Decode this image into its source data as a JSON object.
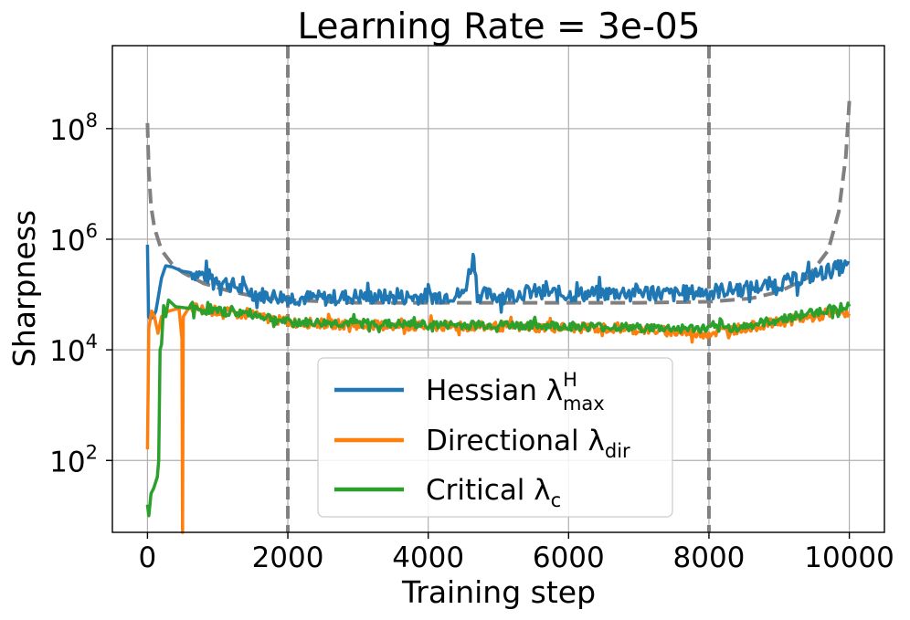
{
  "chart_data": {
    "type": "line",
    "title": "Learning Rate = 3e-05",
    "xlabel": "Training step",
    "ylabel": "Sharpness",
    "xlim": [
      -500,
      10500
    ],
    "ylim_log10": [
      0.7,
      9.5
    ],
    "y_scale": "log",
    "grid": true,
    "legend_position": "lower-center",
    "x_ticks": [
      {
        "value": 0,
        "label": "0"
      },
      {
        "value": 2000,
        "label": "2000"
      },
      {
        "value": 4000,
        "label": "4000"
      },
      {
        "value": 6000,
        "label": "6000"
      },
      {
        "value": 8000,
        "label": "8000"
      },
      {
        "value": 10000,
        "label": "10000"
      }
    ],
    "y_ticks": [
      {
        "exp": 2,
        "base": "10",
        "sup": "2"
      },
      {
        "exp": 4,
        "base": "10",
        "sup": "4"
      },
      {
        "exp": 6,
        "base": "10",
        "sup": "6"
      },
      {
        "exp": 8,
        "base": "10",
        "sup": "8"
      }
    ],
    "vertical_lines": [
      2000,
      8000
    ],
    "colors": {
      "hessian": "#1f77b4",
      "directional": "#ff7f0e",
      "critical": "#2ca02c",
      "reference": "#808080"
    },
    "series": [
      {
        "name": "Hessian",
        "legend_main": "Hessian λ",
        "legend_sup": "H",
        "legend_sub": "max",
        "color": "#1f77b4",
        "points_log10": [
          [
            0,
            5.9
          ],
          [
            15,
            4.6
          ],
          [
            40,
            4.55
          ],
          [
            80,
            4.6
          ],
          [
            120,
            4.7
          ],
          [
            160,
            5.0
          ],
          [
            200,
            5.3
          ],
          [
            260,
            5.52
          ],
          [
            350,
            5.5
          ],
          [
            500,
            5.42
          ],
          [
            700,
            5.38
          ],
          [
            1000,
            5.28
          ],
          [
            1300,
            5.12
          ],
          [
            1600,
            5.0
          ],
          [
            2000,
            4.95
          ],
          [
            2500,
            4.93
          ],
          [
            3000,
            4.97
          ],
          [
            3500,
            4.95
          ],
          [
            4000,
            4.97
          ],
          [
            4500,
            5.0
          ],
          [
            4650,
            5.7
          ],
          [
            4700,
            5.0
          ],
          [
            5000,
            4.98
          ],
          [
            5500,
            5.05
          ],
          [
            6000,
            5.0
          ],
          [
            6500,
            5.02
          ],
          [
            7000,
            5.06
          ],
          [
            7500,
            5.0
          ],
          [
            8000,
            5.06
          ],
          [
            8500,
            5.1
          ],
          [
            9000,
            5.2
          ],
          [
            9500,
            5.35
          ],
          [
            9900,
            5.5
          ],
          [
            10000,
            5.5
          ]
        ],
        "noise": 0.14
      },
      {
        "name": "Directional",
        "legend_main": "Directional λ",
        "legend_sup": "",
        "legend_sub": "dir",
        "color": "#ff7f0e",
        "points_log10": [
          [
            0,
            2.2
          ],
          [
            20,
            4.4
          ],
          [
            60,
            4.7
          ],
          [
            100,
            4.6
          ],
          [
            150,
            4.3
          ],
          [
            200,
            4.6
          ],
          [
            300,
            4.7
          ],
          [
            450,
            4.75
          ],
          [
            490,
            4.2
          ],
          [
            500,
            0.7
          ],
          [
            510,
            4.6
          ],
          [
            600,
            4.78
          ],
          [
            800,
            4.72
          ],
          [
            1000,
            4.7
          ],
          [
            1500,
            4.62
          ],
          [
            2000,
            4.5
          ],
          [
            3000,
            4.45
          ],
          [
            4000,
            4.42
          ],
          [
            5000,
            4.42
          ],
          [
            6000,
            4.4
          ],
          [
            7000,
            4.38
          ],
          [
            7700,
            4.3
          ],
          [
            8000,
            4.3
          ],
          [
            8500,
            4.4
          ],
          [
            9000,
            4.5
          ],
          [
            9500,
            4.6
          ],
          [
            10000,
            4.68
          ]
        ],
        "noise": 0.09
      },
      {
        "name": "Critical",
        "legend_main": "Critical λ",
        "legend_sup": "",
        "legend_sub": "c",
        "color": "#2ca02c",
        "points_log10": [
          [
            0,
            1.2
          ],
          [
            20,
            1.0
          ],
          [
            50,
            1.4
          ],
          [
            90,
            1.5
          ],
          [
            140,
            1.7
          ],
          [
            160,
            2.0
          ],
          [
            180,
            4.0
          ],
          [
            200,
            4.1
          ],
          [
            230,
            4.8
          ],
          [
            260,
            4.6
          ],
          [
            300,
            4.9
          ],
          [
            400,
            4.78
          ],
          [
            600,
            4.75
          ],
          [
            800,
            4.72
          ],
          [
            1000,
            4.7
          ],
          [
            1500,
            4.65
          ],
          [
            2000,
            4.5
          ],
          [
            3000,
            4.48
          ],
          [
            4000,
            4.45
          ],
          [
            5000,
            4.45
          ],
          [
            6000,
            4.43
          ],
          [
            7000,
            4.4
          ],
          [
            8000,
            4.38
          ],
          [
            8500,
            4.42
          ],
          [
            9000,
            4.55
          ],
          [
            9500,
            4.68
          ],
          [
            10000,
            4.8
          ]
        ],
        "noise": 0.08
      },
      {
        "name": "Reference",
        "legend_main": "",
        "color": "#808080",
        "dashed": true,
        "points_log10": [
          [
            0,
            8.1
          ],
          [
            20,
            7.2
          ],
          [
            50,
            6.6
          ],
          [
            100,
            6.2
          ],
          [
            200,
            5.8
          ],
          [
            350,
            5.55
          ],
          [
            500,
            5.4
          ],
          [
            800,
            5.2
          ],
          [
            1200,
            5.05
          ],
          [
            1600,
            4.95
          ],
          [
            2000,
            4.9
          ],
          [
            3000,
            4.85
          ],
          [
            5000,
            4.85
          ],
          [
            7000,
            4.85
          ],
          [
            8000,
            4.87
          ],
          [
            8600,
            4.93
          ],
          [
            9000,
            5.05
          ],
          [
            9400,
            5.3
          ],
          [
            9700,
            5.8
          ],
          [
            9850,
            6.5
          ],
          [
            9950,
            7.5
          ],
          [
            10000,
            8.5
          ]
        ]
      }
    ]
  }
}
